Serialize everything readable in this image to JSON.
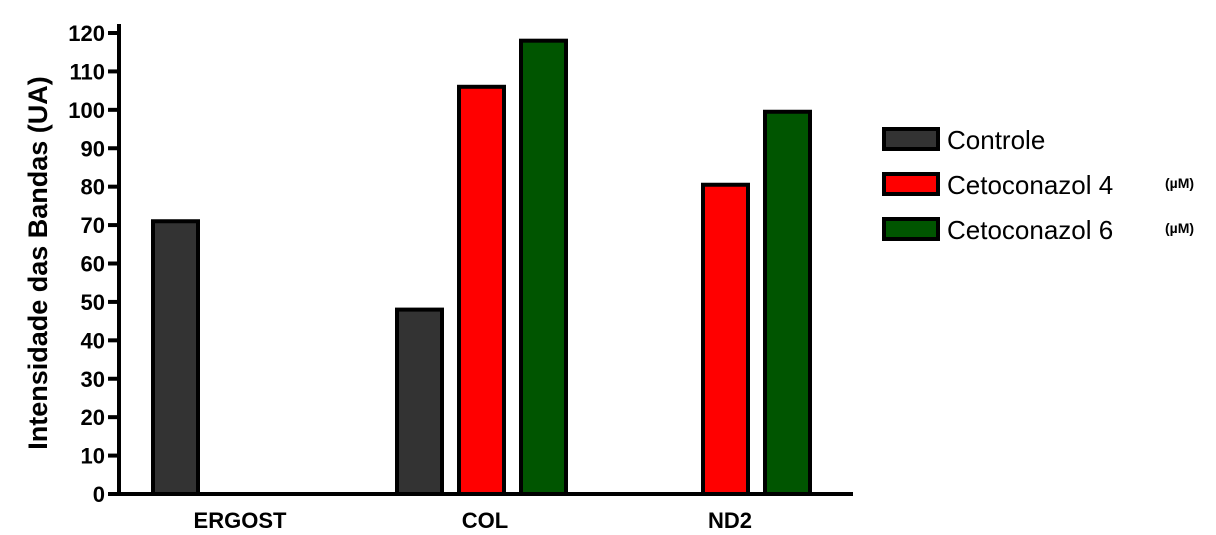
{
  "chart_data": {
    "type": "bar",
    "ylabel": "Intensidade das Bandas (UA)",
    "xlabel": "",
    "ylim": [
      0,
      120
    ],
    "yticks": [
      0,
      10,
      20,
      30,
      40,
      50,
      60,
      70,
      80,
      90,
      100,
      110,
      120
    ],
    "categories": [
      "ERGOST",
      "COL",
      "ND2"
    ],
    "series": [
      {
        "name": "Controle",
        "unit": "",
        "color": "#333333",
        "values": [
          71,
          48,
          0
        ]
      },
      {
        "name": "Cetoconazol 4",
        "unit": "(µM)",
        "color": "#ff0000",
        "values": [
          0,
          106,
          80.5
        ]
      },
      {
        "name": "Cetoconazol 6",
        "unit": "(µM)",
        "color": "#005500",
        "values": [
          0,
          118,
          99.5
        ]
      }
    ],
    "legend_position": "right",
    "grid": false
  }
}
